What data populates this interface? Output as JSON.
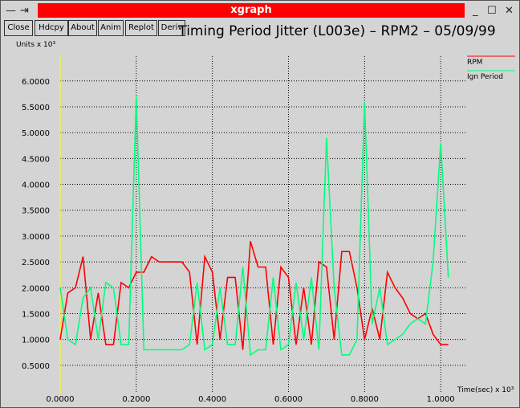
{
  "window": {
    "title": "xgraph",
    "buttons": [
      "Close",
      "Hdcpy",
      "About",
      "Anim",
      "Replot",
      "Deriv"
    ]
  },
  "chart_data": {
    "type": "line",
    "title": "Timing Period Jitter (L003e) – RPM2 – 05/09/99",
    "y_label": "Units x 10³",
    "x_label": "Time(sec) x 10³",
    "x": [
      0,
      0.02,
      0.04,
      0.06,
      0.08,
      0.1,
      0.12,
      0.14,
      0.16,
      0.18,
      0.2,
      0.22,
      0.24,
      0.26,
      0.28,
      0.3,
      0.32,
      0.34,
      0.36,
      0.38,
      0.4,
      0.42,
      0.44,
      0.46,
      0.48,
      0.5,
      0.52,
      0.54,
      0.56,
      0.58,
      0.6,
      0.62,
      0.64,
      0.66,
      0.68,
      0.7,
      0.72,
      0.74,
      0.76,
      0.78,
      0.8,
      0.82,
      0.84,
      0.86,
      0.88,
      0.9,
      0.92,
      0.94,
      0.96,
      0.98,
      1.0,
      1.02
    ],
    "series": [
      {
        "name": "RPM",
        "color": "#ff0000",
        "values": [
          1.0,
          1.9,
          2.0,
          2.6,
          1.0,
          1.9,
          0.9,
          0.9,
          2.1,
          2.0,
          2.3,
          2.3,
          2.6,
          2.5,
          2.5,
          2.5,
          2.5,
          2.3,
          0.9,
          2.6,
          2.3,
          1.0,
          2.2,
          2.2,
          0.8,
          2.9,
          2.4,
          2.4,
          0.9,
          2.4,
          2.2,
          0.9,
          2.0,
          0.9,
          2.5,
          2.4,
          1.0,
          2.7,
          2.7,
          2.0,
          1.0,
          1.6,
          1.0,
          2.3,
          2.0,
          1.8,
          1.5,
          1.4,
          1.5,
          1.1,
          0.9,
          0.9
        ]
      },
      {
        "name": "Ign Period",
        "color": "#00ff80",
        "values": [
          2.0,
          1.0,
          0.9,
          1.8,
          2.0,
          1.0,
          2.1,
          2.0,
          0.9,
          0.9,
          5.7,
          0.8,
          0.8,
          0.8,
          0.8,
          0.8,
          0.8,
          0.9,
          2.1,
          0.8,
          0.9,
          2.0,
          0.9,
          0.9,
          2.4,
          0.7,
          0.8,
          0.8,
          2.2,
          0.8,
          0.9,
          2.1,
          1.0,
          2.2,
          0.8,
          4.9,
          2.0,
          0.7,
          0.7,
          1.0,
          5.6,
          1.3,
          2.0,
          0.9,
          1.0,
          1.1,
          1.3,
          1.4,
          1.3,
          2.5,
          4.8,
          2.2
        ]
      }
    ],
    "xlim": [
      0,
      1.065
    ],
    "ylim": [
      0,
      6.4
    ],
    "xticks": [
      {
        "value": 0,
        "label": "0.0000"
      },
      {
        "value": 0.2,
        "label": "0.2000"
      },
      {
        "value": 0.4,
        "label": "0.4000"
      },
      {
        "value": 0.6,
        "label": "0.6000"
      },
      {
        "value": 0.8,
        "label": "0.8000"
      },
      {
        "value": 1,
        "label": "1.0000"
      }
    ],
    "yticks": [
      {
        "value": 0.5,
        "label": "0.5000"
      },
      {
        "value": 1,
        "label": "1.0000"
      },
      {
        "value": 1.5,
        "label": "1.5000"
      },
      {
        "value": 2,
        "label": "2.0000"
      },
      {
        "value": 2.5,
        "label": "2.5000"
      },
      {
        "value": 3,
        "label": "3.0000"
      },
      {
        "value": 3.5,
        "label": "3.5000"
      },
      {
        "value": 4,
        "label": "4.0000"
      },
      {
        "value": 4.5,
        "label": "4.5000"
      },
      {
        "value": 5,
        "label": "5.0000"
      },
      {
        "value": 5.5,
        "label": "5.5000"
      },
      {
        "value": 6,
        "label": "6.0000"
      }
    ],
    "grid": true
  }
}
